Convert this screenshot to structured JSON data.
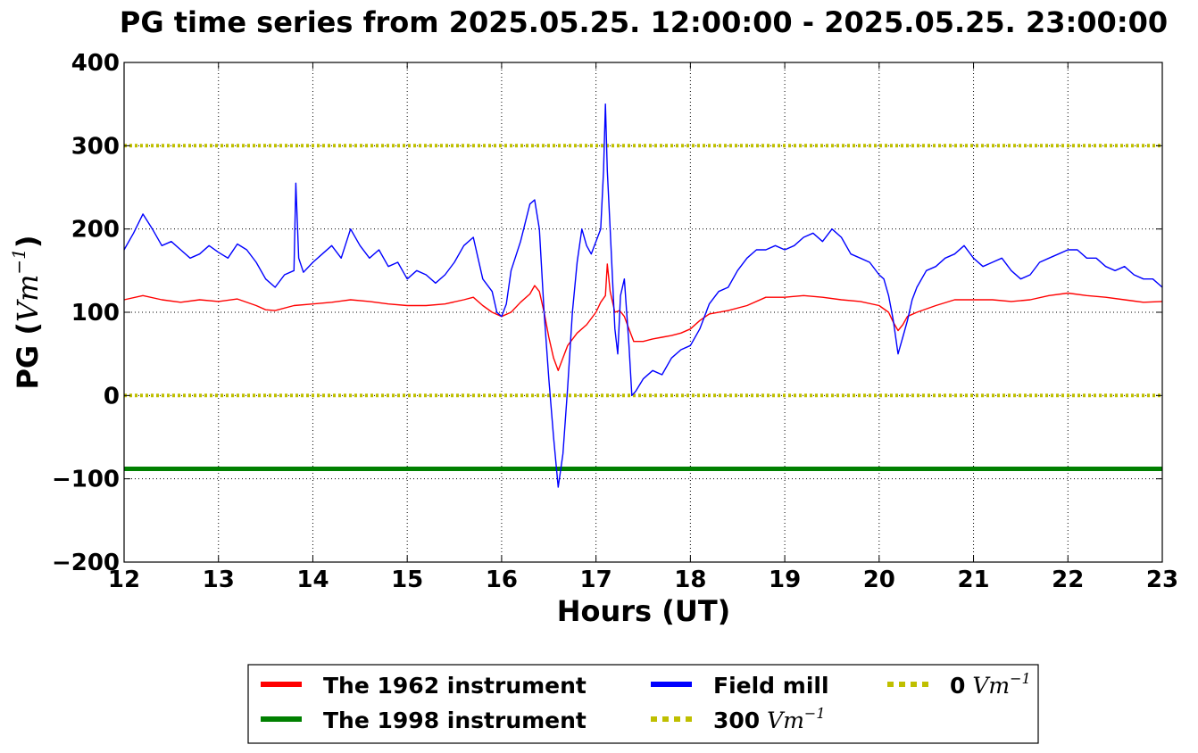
{
  "chart_data": {
    "type": "line",
    "title": "PG time series from 2025.05.25. 12:00:00 - 2025.05.25. 23:00:00",
    "xlabel": "Hours (UT)",
    "ylabel_prefix": "PG (",
    "ylabel_unit": "Vm",
    "ylabel_exp": "−1",
    "ylabel_suffix": ")",
    "xlim": [
      12,
      23
    ],
    "ylim": [
      -200,
      400
    ],
    "x_ticks": [
      "12",
      "13",
      "14",
      "15",
      "16",
      "17",
      "18",
      "19",
      "20",
      "21",
      "22",
      "23"
    ],
    "y_ticks": [
      "−200",
      "−100",
      "0",
      "100",
      "200",
      "300",
      "400"
    ],
    "grid": true,
    "legend_position": "bottom-center",
    "series": [
      {
        "name": "The 1962 instrument",
        "color": "#ff0000",
        "x": [
          12.0,
          12.2,
          12.4,
          12.6,
          12.8,
          13.0,
          13.2,
          13.4,
          13.5,
          13.6,
          13.8,
          14.0,
          14.2,
          14.4,
          14.6,
          14.8,
          15.0,
          15.2,
          15.4,
          15.6,
          15.7,
          15.8,
          15.9,
          16.0,
          16.1,
          16.2,
          16.3,
          16.35,
          16.4,
          16.45,
          16.5,
          16.55,
          16.6,
          16.65,
          16.7,
          16.8,
          16.9,
          17.0,
          17.05,
          17.1,
          17.12,
          17.15,
          17.2,
          17.25,
          17.3,
          17.35,
          17.4,
          17.5,
          17.6,
          17.7,
          17.8,
          17.9,
          18.0,
          18.1,
          18.2,
          18.4,
          18.6,
          18.8,
          19.0,
          19.2,
          19.4,
          19.6,
          19.8,
          20.0,
          20.1,
          20.15,
          20.2,
          20.25,
          20.3,
          20.4,
          20.6,
          20.8,
          21.0,
          21.2,
          21.4,
          21.6,
          21.8,
          22.0,
          22.2,
          22.4,
          22.6,
          22.8,
          23.0
        ],
        "values": [
          115,
          120,
          115,
          112,
          115,
          113,
          116,
          108,
          103,
          102,
          108,
          110,
          112,
          115,
          113,
          110,
          108,
          108,
          110,
          115,
          118,
          108,
          100,
          95,
          100,
          112,
          122,
          132,
          125,
          100,
          70,
          45,
          30,
          45,
          60,
          75,
          85,
          100,
          112,
          120,
          158,
          125,
          100,
          102,
          95,
          80,
          65,
          65,
          68,
          70,
          72,
          75,
          80,
          90,
          98,
          102,
          108,
          118,
          118,
          120,
          118,
          115,
          113,
          108,
          100,
          88,
          78,
          85,
          95,
          100,
          108,
          115,
          115,
          115,
          113,
          115,
          120,
          123,
          120,
          118,
          115,
          112,
          113
        ]
      },
      {
        "name": "The 1998 instrument",
        "color": "#008000",
        "x": [
          12,
          23
        ],
        "values": [
          -88,
          -88
        ]
      },
      {
        "name": "Field mill",
        "color": "#0000ff",
        "x": [
          12.0,
          12.1,
          12.2,
          12.3,
          12.4,
          12.5,
          12.6,
          12.7,
          12.8,
          12.9,
          13.0,
          13.1,
          13.2,
          13.3,
          13.4,
          13.5,
          13.6,
          13.7,
          13.8,
          13.82,
          13.85,
          13.9,
          14.0,
          14.1,
          14.2,
          14.3,
          14.4,
          14.5,
          14.6,
          14.7,
          14.8,
          14.9,
          15.0,
          15.1,
          15.2,
          15.3,
          15.4,
          15.5,
          15.6,
          15.7,
          15.8,
          15.9,
          15.95,
          16.0,
          16.05,
          16.1,
          16.2,
          16.3,
          16.35,
          16.4,
          16.45,
          16.5,
          16.55,
          16.6,
          16.65,
          16.7,
          16.75,
          16.8,
          16.85,
          16.9,
          16.95,
          17.0,
          17.05,
          17.08,
          17.1,
          17.12,
          17.15,
          17.2,
          17.23,
          17.26,
          17.3,
          17.35,
          17.38,
          17.42,
          17.5,
          17.6,
          17.7,
          17.8,
          17.9,
          18.0,
          18.1,
          18.2,
          18.3,
          18.4,
          18.5,
          18.6,
          18.7,
          18.8,
          18.9,
          19.0,
          19.1,
          19.2,
          19.3,
          19.4,
          19.5,
          19.6,
          19.7,
          19.8,
          19.9,
          20.0,
          20.05,
          20.1,
          20.15,
          20.2,
          20.25,
          20.3,
          20.35,
          20.4,
          20.5,
          20.6,
          20.7,
          20.8,
          20.9,
          21.0,
          21.1,
          21.2,
          21.3,
          21.4,
          21.5,
          21.6,
          21.7,
          21.8,
          21.9,
          22.0,
          22.1,
          22.2,
          22.3,
          22.4,
          22.5,
          22.6,
          22.7,
          22.8,
          22.9,
          23.0
        ],
        "values": [
          175,
          195,
          218,
          200,
          180,
          185,
          175,
          165,
          170,
          180,
          172,
          165,
          182,
          175,
          160,
          140,
          130,
          145,
          150,
          255,
          165,
          148,
          160,
          170,
          180,
          165,
          200,
          180,
          165,
          175,
          155,
          160,
          140,
          150,
          145,
          135,
          145,
          160,
          180,
          190,
          140,
          125,
          100,
          95,
          110,
          150,
          185,
          230,
          235,
          200,
          100,
          20,
          -50,
          -110,
          -70,
          10,
          100,
          160,
          200,
          180,
          170,
          185,
          200,
          270,
          350,
          270,
          200,
          80,
          50,
          120,
          140,
          60,
          0,
          5,
          20,
          30,
          25,
          45,
          55,
          60,
          80,
          110,
          125,
          130,
          150,
          165,
          175,
          175,
          180,
          175,
          180,
          190,
          195,
          185,
          200,
          190,
          170,
          165,
          160,
          145,
          140,
          120,
          90,
          50,
          70,
          90,
          115,
          130,
          150,
          155,
          165,
          170,
          180,
          165,
          155,
          160,
          165,
          150,
          140,
          145,
          160,
          165,
          170,
          175,
          175,
          165,
          165,
          155,
          150,
          155,
          145,
          140,
          140,
          130
        ]
      },
      {
        "name": "300",
        "color": "#bfbf00",
        "x": [
          12,
          23
        ],
        "values": [
          300,
          300
        ]
      },
      {
        "name": "0",
        "color": "#bfbf00",
        "x": [
          12,
          23
        ],
        "values": [
          0,
          0
        ]
      }
    ],
    "legend": [
      {
        "label": "The 1962 instrument",
        "unit": "",
        "exp": "",
        "color": "#ff0000",
        "style": "solid"
      },
      {
        "label": "Field mill",
        "unit": "",
        "exp": "",
        "color": "#0000ff",
        "style": "solid"
      },
      {
        "label": "0",
        "unit": "Vm",
        "exp": "−1",
        "color": "#bfbf00",
        "style": "dotted"
      },
      {
        "label": "The 1998 instrument",
        "unit": "",
        "exp": "",
        "color": "#008000",
        "style": "solid"
      },
      {
        "label": "300",
        "unit": "Vm",
        "exp": "−1",
        "color": "#bfbf00",
        "style": "dotted"
      }
    ]
  }
}
